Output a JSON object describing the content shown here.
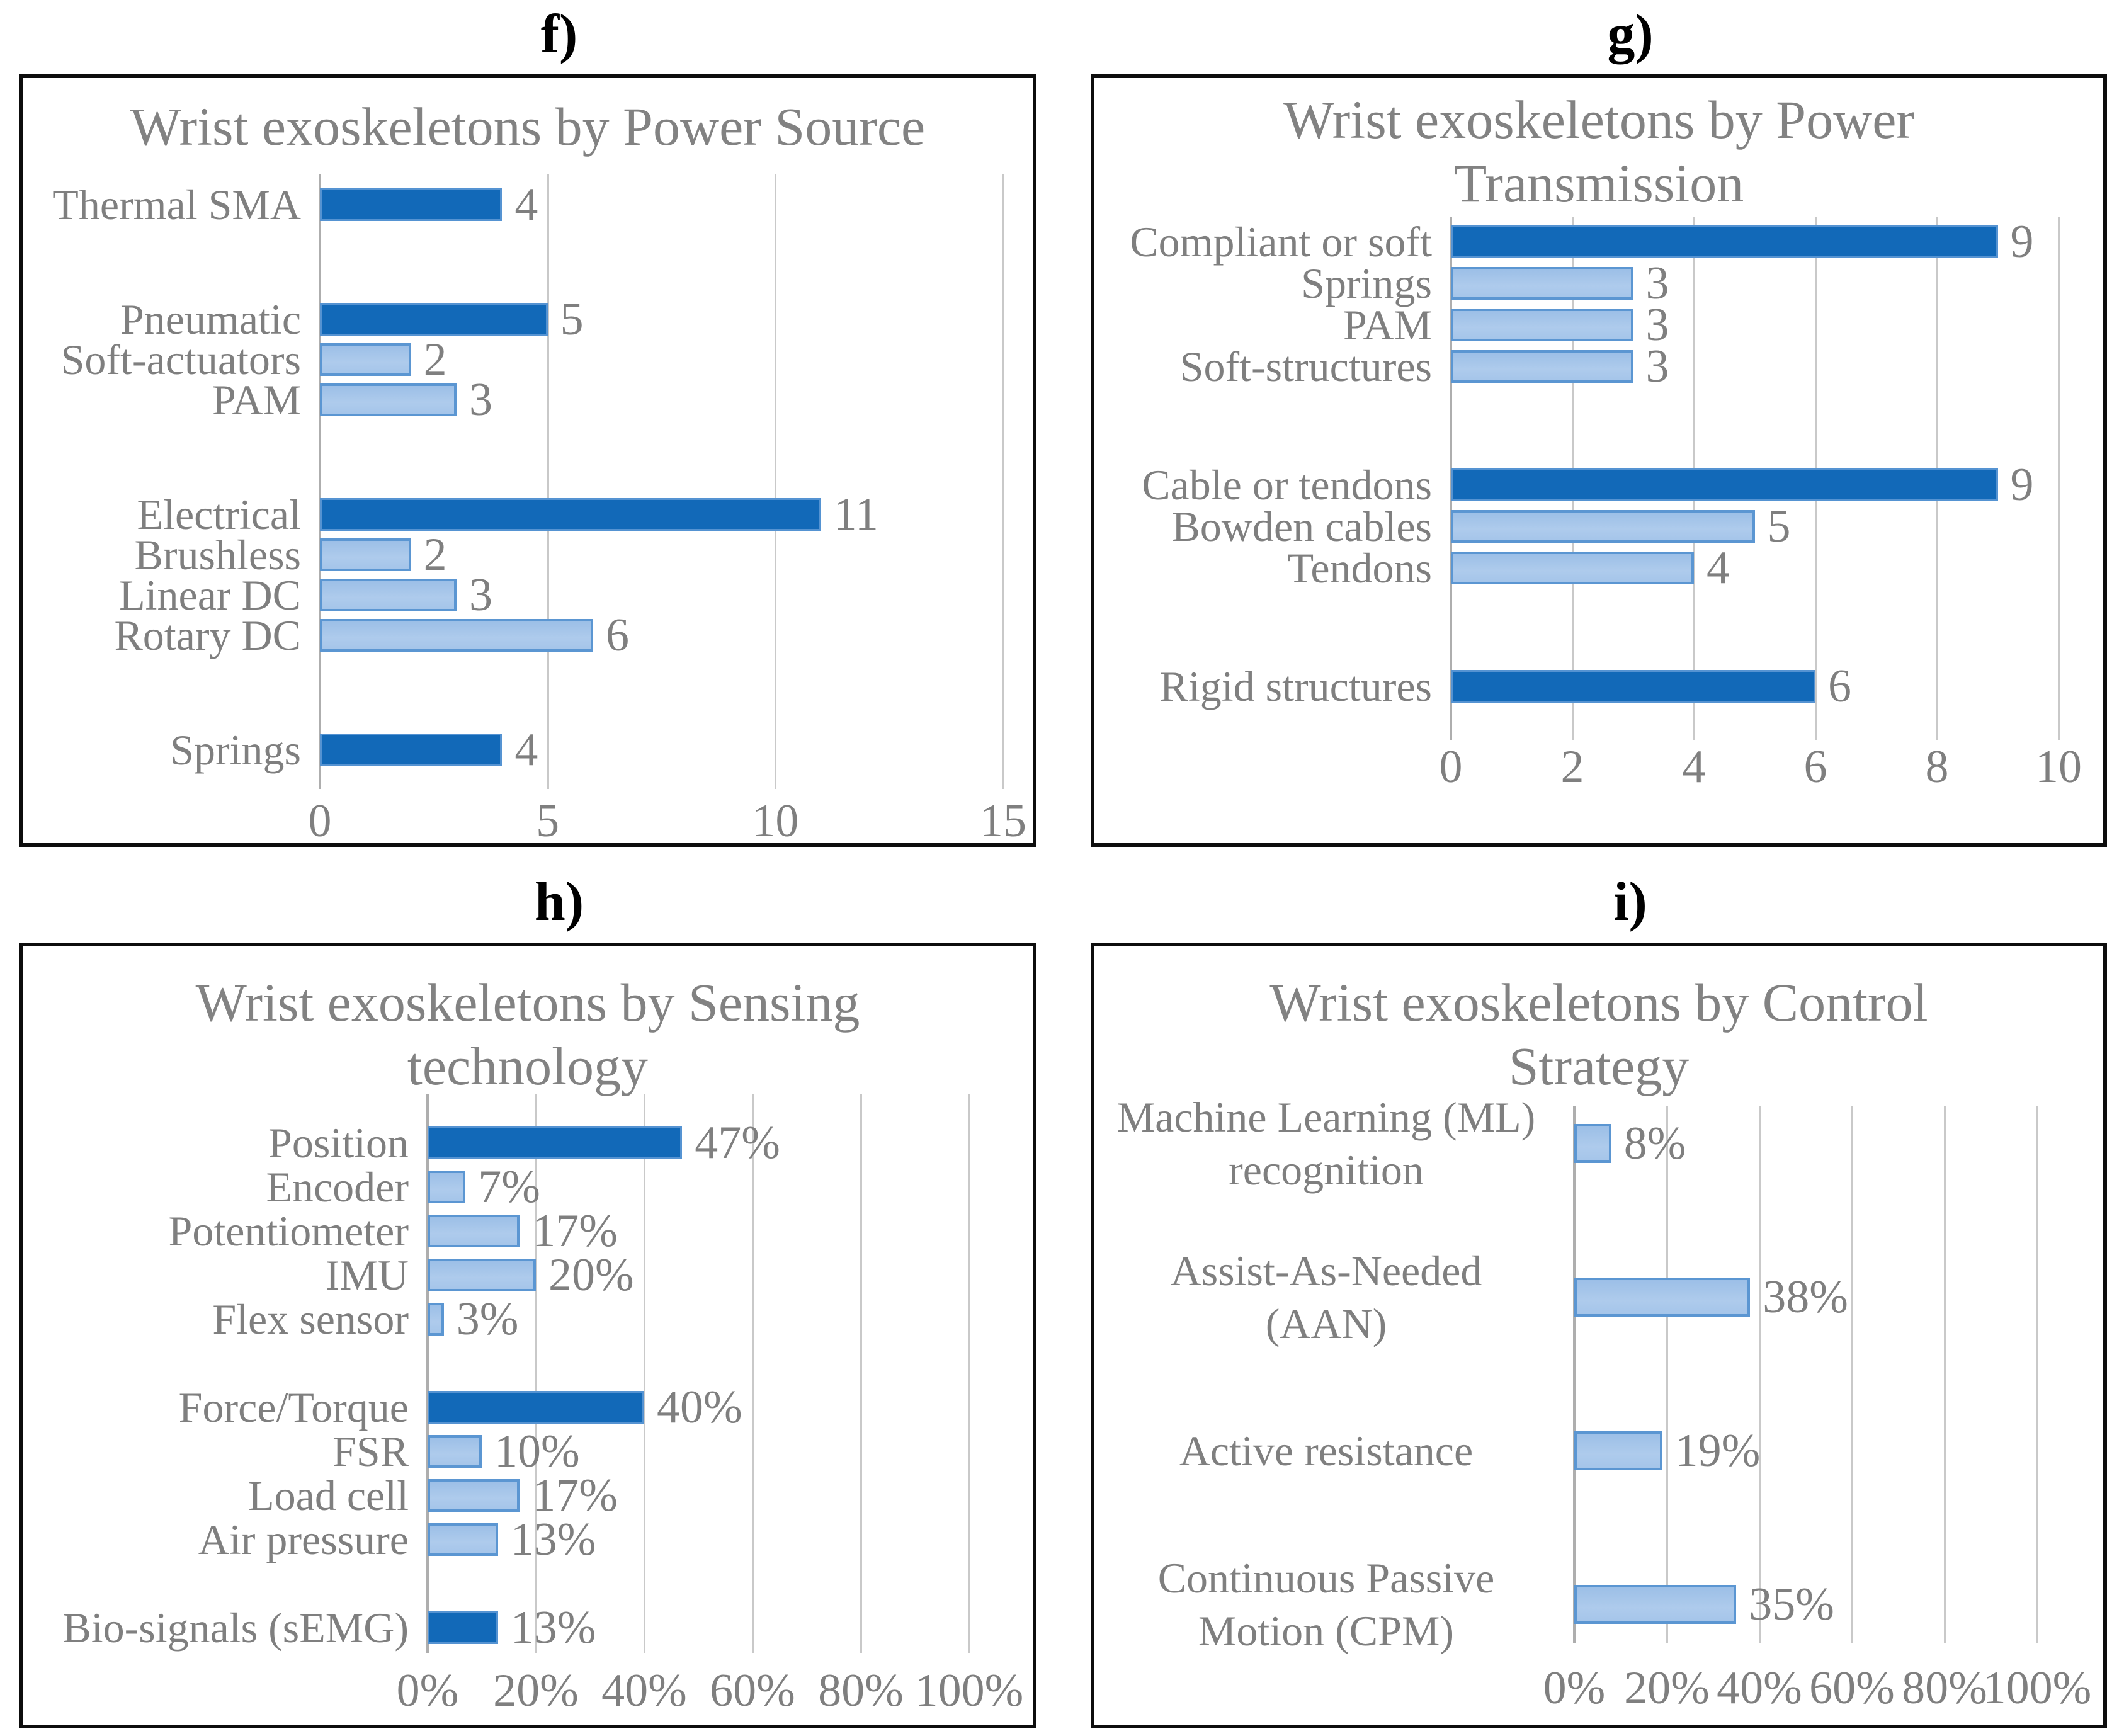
{
  "figure": {
    "background": "#ffffff",
    "text_color": "#7f7f7f",
    "title_color": "#828282",
    "grid_color": "#c9c9c9",
    "axis_color": "#aeaeae",
    "panel_border_color": "#0d0d0d",
    "dark_bar_color": "#1269b8",
    "light_bar_fill": "#a5c5ea",
    "light_bar_border": "#5b96d2"
  },
  "chart_data": [
    {
      "id": "f",
      "type": "bar",
      "orientation": "horizontal",
      "panel_label": "f)",
      "title": "Wrist exoskeletons by Power Source",
      "title_lines": [
        "Wrist exoskeletons by Power Source"
      ],
      "xlim": [
        0,
        15
      ],
      "x_tick_values": [
        0,
        5,
        10,
        15
      ],
      "x_tick_labels": [
        "0",
        "5",
        "10",
        "15"
      ],
      "grid": true,
      "groups": [
        {
          "rows": [
            {
              "label": "Thermal SMA",
              "value": 4,
              "value_label": "4",
              "tone": "dark"
            }
          ]
        },
        {
          "rows": [
            {
              "label": "Pneumatic",
              "value": 5,
              "value_label": "5",
              "tone": "dark"
            },
            {
              "label": "Soft-actuators",
              "value": 2,
              "value_label": "2",
              "tone": "light"
            },
            {
              "label": "PAM",
              "value": 3,
              "value_label": "3",
              "tone": "light"
            }
          ]
        },
        {
          "rows": [
            {
              "label": "Electrical",
              "value": 11,
              "value_label": "11",
              "tone": "dark"
            },
            {
              "label": "Brushless",
              "value": 2,
              "value_label": "2",
              "tone": "light"
            },
            {
              "label": "Linear DC",
              "value": 3,
              "value_label": "3",
              "tone": "light"
            },
            {
              "label": "Rotary DC",
              "value": 6,
              "value_label": "6",
              "tone": "light"
            }
          ]
        },
        {
          "rows": [
            {
              "label": "Springs",
              "value": 4,
              "value_label": "4",
              "tone": "dark"
            }
          ]
        }
      ]
    },
    {
      "id": "g",
      "type": "bar",
      "orientation": "horizontal",
      "panel_label": "g)",
      "title": "Wrist exoskeletons by Power Transmission",
      "title_lines": [
        "Wrist exoskeletons by Power",
        "Transmission"
      ],
      "xlim": [
        0,
        10
      ],
      "x_tick_values": [
        0,
        2,
        4,
        6,
        8,
        10
      ],
      "x_tick_labels": [
        "0",
        "2",
        "4",
        "6",
        "8",
        "10"
      ],
      "grid": true,
      "groups": [
        {
          "rows": [
            {
              "label": "Compliant or soft",
              "value": 9,
              "value_label": "9",
              "tone": "dark"
            },
            {
              "label": "Springs",
              "value": 3,
              "value_label": "3",
              "tone": "light"
            },
            {
              "label": "PAM",
              "value": 3,
              "value_label": "3",
              "tone": "light"
            },
            {
              "label": "Soft-structures",
              "value": 3,
              "value_label": "3",
              "tone": "light"
            }
          ]
        },
        {
          "rows": [
            {
              "label": "Cable or tendons",
              "value": 9,
              "value_label": "9",
              "tone": "dark"
            },
            {
              "label": "Bowden cables",
              "value": 5,
              "value_label": "5",
              "tone": "light"
            },
            {
              "label": "Tendons",
              "value": 4,
              "value_label": "4",
              "tone": "light"
            }
          ]
        },
        {
          "rows": [
            {
              "label": "Rigid structures",
              "value": 6,
              "value_label": "6",
              "tone": "dark"
            }
          ]
        }
      ]
    },
    {
      "id": "h",
      "type": "bar",
      "orientation": "horizontal",
      "panel_label": "h)",
      "title": "Wrist exoskeletons by Sensing technology",
      "title_lines": [
        "Wrist exoskeletons by Sensing",
        "technology"
      ],
      "xlim": [
        0,
        100
      ],
      "x_tick_values": [
        0,
        20,
        40,
        60,
        80,
        100
      ],
      "x_tick_labels": [
        "0%",
        "20%",
        "40%",
        "60%",
        "80%",
        "100%"
      ],
      "grid": true,
      "groups": [
        {
          "rows": [
            {
              "label": "Position",
              "value": 47,
              "value_label": "47%",
              "tone": "dark"
            },
            {
              "label": "Encoder",
              "value": 7,
              "value_label": "7%",
              "tone": "light"
            },
            {
              "label": "Potentiometer",
              "value": 17,
              "value_label": "17%",
              "tone": "light"
            },
            {
              "label": "IMU",
              "value": 20,
              "value_label": "20%",
              "tone": "light"
            },
            {
              "label": "Flex sensor",
              "value": 3,
              "value_label": "3%",
              "tone": "light"
            }
          ]
        },
        {
          "rows": [
            {
              "label": "Force/Torque",
              "value": 40,
              "value_label": "40%",
              "tone": "dark"
            },
            {
              "label": "FSR",
              "value": 10,
              "value_label": "10%",
              "tone": "light"
            },
            {
              "label": "Load cell",
              "value": 17,
              "value_label": "17%",
              "tone": "light"
            },
            {
              "label": "Air pressure",
              "value": 13,
              "value_label": "13%",
              "tone": "light"
            }
          ]
        },
        {
          "rows": [
            {
              "label": "Bio-signals (sEMG)",
              "value": 13,
              "value_label": "13%",
              "tone": "dark"
            }
          ]
        }
      ]
    },
    {
      "id": "i",
      "type": "bar",
      "orientation": "horizontal",
      "panel_label": "i)",
      "title": "Wrist exoskeletons by Control Strategy",
      "title_lines": [
        "Wrist exoskeletons by Control",
        "Strategy"
      ],
      "xlim": [
        0,
        100
      ],
      "x_tick_values": [
        0,
        20,
        40,
        60,
        80,
        100
      ],
      "x_tick_labels": [
        "0%",
        "20%",
        "40%",
        "60%",
        "80%",
        "100%"
      ],
      "grid": true,
      "groups": [
        {
          "rows": [
            {
              "label": "Machine Learning (ML) recognition",
              "label_lines": [
                "Machine Learning  (ML)",
                "recognition"
              ],
              "value": 8,
              "value_label": "8%",
              "tone": "light"
            },
            {
              "label": "Assist-As-Needed (AAN)",
              "label_lines": [
                "Assist-As-Needed",
                "(AAN)"
              ],
              "value": 38,
              "value_label": "38%",
              "tone": "light"
            },
            {
              "label": "Active resistance",
              "label_lines": [
                "Active resistance"
              ],
              "value": 19,
              "value_label": "19%",
              "tone": "light"
            },
            {
              "label": "Continuous Passive Motion (CPM)",
              "label_lines": [
                "Continuous Passive",
                "Motion (CPM)"
              ],
              "value": 35,
              "value_label": "35%",
              "tone": "light"
            }
          ]
        }
      ]
    }
  ]
}
